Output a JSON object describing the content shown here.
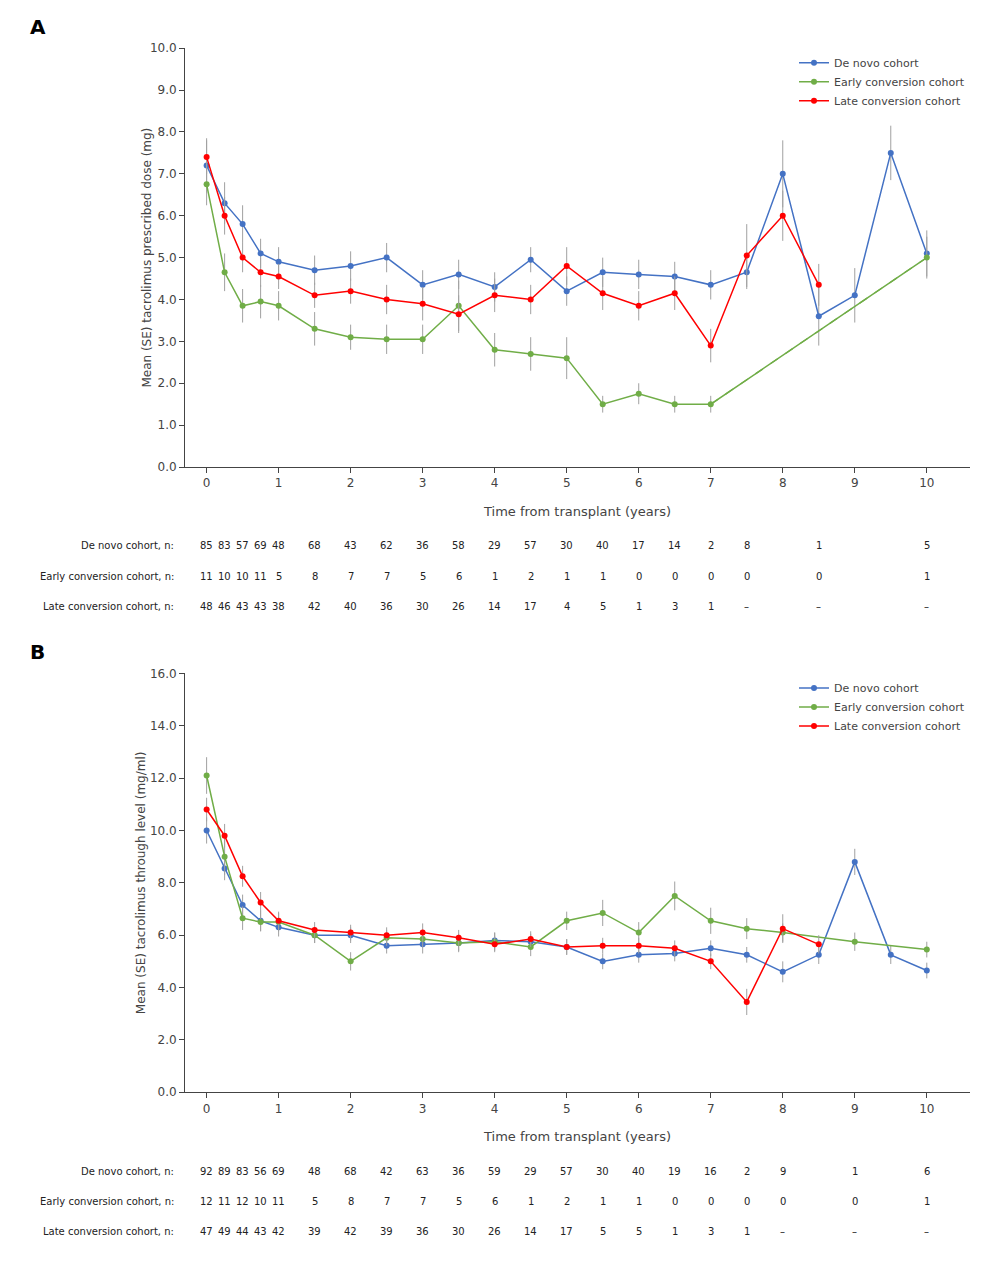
{
  "chart_data": [
    {
      "type": "line",
      "title": "A",
      "xlabel": "Time from transplant (years)",
      "ylabel": "Mean (SE) tacrolimus prescribed dose (mg)",
      "xlim": [
        -0.3,
        10.6
      ],
      "xticks": [
        0,
        1,
        2,
        3,
        4,
        5,
        6,
        7,
        8,
        9,
        10
      ],
      "ylim": [
        0.0,
        10.0
      ],
      "yticks": [
        {
          "value": 0.0,
          "label": "0.0"
        },
        {
          "value": 1.0,
          "label": "1.0"
        },
        {
          "value": 2.0,
          "label": "2.0"
        },
        {
          "value": 3.0,
          "label": "3.0"
        },
        {
          "value": 4.0,
          "label": "4.0"
        },
        {
          "value": 5.0,
          "label": "5.0"
        },
        {
          "value": 6.0,
          "label": "6.0"
        },
        {
          "value": 7.0,
          "label": "7.0"
        },
        {
          "value": 8.0,
          "label": "8.0"
        },
        {
          "value": 9.0,
          "label": "9.0"
        },
        {
          "value": 10.0,
          "label": "10.0"
        }
      ],
      "grid": false,
      "legend": "upper right",
      "series": [
        {
          "name": "De novo cohort",
          "color": "#4472C4",
          "marker": "circle",
          "x": [
            0,
            0.25,
            0.5,
            0.75,
            1.0,
            1.5,
            2.0,
            2.5,
            3.0,
            3.5,
            4.0,
            4.5,
            5.0,
            5.5,
            6.0,
            6.5,
            7.0,
            7.5,
            8.0,
            8.5,
            9.0,
            9.5,
            10.0
          ],
          "values": [
            7.2,
            6.3,
            5.8,
            5.1,
            4.9,
            4.7,
            4.8,
            5.0,
            4.35,
            4.6,
            4.3,
            4.95,
            4.2,
            4.65,
            4.6,
            4.55,
            4.35,
            4.65,
            7.0,
            3.6,
            4.1,
            7.5,
            5.1
          ],
          "errors": [
            0.65,
            0.5,
            0.45,
            0.35,
            0.35,
            0.35,
            0.35,
            0.35,
            0.35,
            0.35,
            0.35,
            0.3,
            0.35,
            0.35,
            0.35,
            0.35,
            0.35,
            0.4,
            0.8,
            0.7,
            0.65,
            0.65,
            0.55
          ]
        },
        {
          "name": "Early conversion cohort",
          "color": "#70AD47",
          "marker": "circle",
          "x": [
            0,
            0.25,
            0.5,
            0.75,
            1.0,
            1.5,
            2.0,
            2.5,
            3.0,
            3.5,
            4.0,
            4.5,
            5.0,
            5.5,
            6.0,
            6.5,
            7.0,
            10.0
          ],
          "values": [
            6.75,
            4.65,
            3.85,
            3.95,
            3.85,
            3.3,
            3.1,
            3.05,
            3.05,
            3.85,
            2.8,
            2.7,
            2.6,
            1.5,
            1.75,
            1.5,
            1.5,
            5.0
          ],
          "errors": [
            0.5,
            0.45,
            0.4,
            0.4,
            0.35,
            0.4,
            0.3,
            0.35,
            0.35,
            0.6,
            0.4,
            0.4,
            0.5,
            0.2,
            0.25,
            0.2,
            0.2,
            0.5
          ],
          "dashed_segment": {
            "x": [
              7.0,
              10.0
            ],
            "values": [
              1.5,
              5.0
            ],
            "line_style": "dashed"
          }
        },
        {
          "name": "Late conversion cohort",
          "color": "#FF0000",
          "marker": "circle",
          "x": [
            0,
            0.25,
            0.5,
            0.75,
            1.0,
            1.5,
            2.0,
            2.5,
            3.0,
            3.5,
            4.0,
            4.5,
            5.0,
            5.5,
            6.0,
            6.5,
            7.0,
            7.5,
            8.0,
            8.5
          ],
          "values": [
            7.4,
            6.0,
            5.0,
            4.65,
            4.55,
            4.1,
            4.2,
            4.0,
            3.9,
            3.65,
            4.1,
            4.0,
            4.8,
            4.15,
            3.85,
            4.15,
            2.9,
            5.05,
            6.0,
            4.35
          ],
          "errors": [
            0.4,
            0.45,
            0.35,
            0.35,
            0.3,
            0.3,
            0.3,
            0.35,
            0.4,
            0.45,
            0.4,
            0.35,
            0.45,
            0.4,
            0.35,
            0.4,
            0.4,
            0.75,
            0.6,
            0.5
          ]
        }
      ],
      "table": {
        "x": [
          0,
          0.25,
          0.5,
          0.75,
          1.0,
          1.5,
          2.0,
          2.5,
          3.0,
          3.5,
          4.0,
          4.5,
          5.0,
          5.5,
          6.0,
          6.5,
          7.0,
          7.5,
          8.5,
          10.0
        ],
        "rows": [
          {
            "label": "De novo cohort, n:",
            "values": [
              "85",
              "83",
              "57",
              "69",
              "48",
              "68",
              "43",
              "62",
              "36",
              "58",
              "29",
              "57",
              "30",
              "40",
              "17",
              "14",
              "2",
              "8",
              "1",
              "5"
            ]
          },
          {
            "label": "Early conversion cohort, n:",
            "values": [
              "11",
              "10",
              "10",
              "11",
              "5",
              "8",
              "7",
              "7",
              "5",
              "6",
              "1",
              "2",
              "1",
              "1",
              "0",
              "0",
              "0",
              "0",
              "0",
              "1"
            ]
          },
          {
            "label": "Late conversion cohort, n:",
            "values": [
              "48",
              "46",
              "43",
              "43",
              "38",
              "42",
              "40",
              "36",
              "30",
              "26",
              "14",
              "17",
              "4",
              "5",
              "1",
              "3",
              "1",
              "–",
              "–",
              "–"
            ]
          }
        ]
      }
    },
    {
      "type": "line",
      "title": "B",
      "xlabel": "Time from transplant (years)",
      "ylabel": "Mean (SE) tacrolimus through level (mg/ml)",
      "xlim": [
        -0.3,
        10.6
      ],
      "xticks": [
        0,
        1,
        2,
        3,
        4,
        5,
        6,
        7,
        8,
        9,
        10
      ],
      "ylim": [
        0.0,
        16.0
      ],
      "yticks": [
        {
          "value": 0.0,
          "label": "0.0"
        },
        {
          "value": 2.0,
          "label": "2.0"
        },
        {
          "value": 4.0,
          "label": "4.0"
        },
        {
          "value": 6.0,
          "label": "6.0"
        },
        {
          "value": 8.0,
          "label": "8.0"
        },
        {
          "value": 10.0,
          "label": "10.0"
        },
        {
          "value": 12.0,
          "label": "12.0"
        },
        {
          "value": 14.0,
          "label": "14.0"
        },
        {
          "value": 16.0,
          "label": "16.0"
        }
      ],
      "grid": false,
      "legend": "upper right",
      "series": [
        {
          "name": "De novo cohort",
          "color": "#4472C4",
          "marker": "circle",
          "x": [
            0,
            0.25,
            0.5,
            0.75,
            1.0,
            1.5,
            2.0,
            2.5,
            3.0,
            3.5,
            4.0,
            4.5,
            5.0,
            5.5,
            6.0,
            6.5,
            7.0,
            7.5,
            8.0,
            8.5,
            9.0,
            9.5,
            10.0
          ],
          "values": [
            10.0,
            8.55,
            7.15,
            6.55,
            6.3,
            6.0,
            6.0,
            5.6,
            5.65,
            5.7,
            5.8,
            5.75,
            5.55,
            5.0,
            5.25,
            5.3,
            5.5,
            5.25,
            4.6,
            5.25,
            8.8,
            5.25,
            4.65
          ],
          "errors": [
            0.5,
            0.45,
            0.4,
            0.4,
            0.35,
            0.3,
            0.3,
            0.3,
            0.35,
            0.35,
            0.3,
            0.3,
            0.3,
            0.3,
            0.3,
            0.3,
            0.3,
            0.3,
            0.4,
            0.35,
            0.5,
            0.35,
            0.3
          ]
        },
        {
          "name": "Early conversion cohort",
          "color": "#70AD47",
          "marker": "circle",
          "x": [
            0,
            0.25,
            0.5,
            0.75,
            1.0,
            1.5,
            2.0,
            2.5,
            3.0,
            3.5,
            4.0,
            4.5,
            5.0,
            5.5,
            6.0,
            6.5,
            7.0,
            7.5,
            8.0,
            9.0,
            10.0
          ],
          "values": [
            12.1,
            9.0,
            6.65,
            6.5,
            6.5,
            6.0,
            5.0,
            5.9,
            5.85,
            5.7,
            5.75,
            5.55,
            6.55,
            6.85,
            6.1,
            7.5,
            6.55,
            6.25,
            6.1,
            5.75,
            5.45
          ],
          "errors": [
            0.7,
            0.7,
            0.45,
            0.35,
            0.35,
            0.3,
            0.35,
            0.3,
            0.3,
            0.3,
            0.35,
            0.35,
            0.35,
            0.5,
            0.4,
            0.55,
            0.5,
            0.4,
            0.35,
            0.35,
            0.3
          ]
        },
        {
          "name": "Late conversion cohort",
          "color": "#FF0000",
          "marker": "circle",
          "x": [
            0,
            0.25,
            0.5,
            0.75,
            1.0,
            1.5,
            2.0,
            2.5,
            3.0,
            3.5,
            4.0,
            4.5,
            5.0,
            5.5,
            6.0,
            6.5,
            7.0,
            7.5,
            8.0,
            8.5
          ],
          "values": [
            10.8,
            9.8,
            8.25,
            7.25,
            6.55,
            6.2,
            6.1,
            6.0,
            6.1,
            5.9,
            5.65,
            5.85,
            5.55,
            5.6,
            5.6,
            5.5,
            5.0,
            3.45,
            6.25,
            5.65
          ],
          "errors": [
            0.45,
            0.45,
            0.4,
            0.4,
            0.35,
            0.3,
            0.3,
            0.3,
            0.35,
            0.3,
            0.3,
            0.3,
            0.3,
            0.3,
            0.3,
            0.3,
            0.3,
            0.5,
            0.55,
            0.35
          ]
        }
      ],
      "table": {
        "x": [
          0,
          0.25,
          0.5,
          0.75,
          1.0,
          1.5,
          2.0,
          2.5,
          3.0,
          3.5,
          4.0,
          4.5,
          5.0,
          5.5,
          6.0,
          6.5,
          7.0,
          7.5,
          8.0,
          9.0,
          10.0
        ],
        "rows": [
          {
            "label": "De novo cohort, n:",
            "values": [
              "92",
              "89",
              "83",
              "56",
              "69",
              "48",
              "68",
              "42",
              "63",
              "36",
              "59",
              "29",
              "57",
              "30",
              "40",
              "19",
              "16",
              "2",
              "9",
              "1",
              "6"
            ]
          },
          {
            "label": "Early conversion cohort, n:",
            "values": [
              "12",
              "11",
              "12",
              "10",
              "11",
              "5",
              "8",
              "7",
              "7",
              "5",
              "6",
              "1",
              "2",
              "1",
              "1",
              "0",
              "0",
              "0",
              "0",
              "0",
              "1"
            ]
          },
          {
            "label": "Late conversion cohort, n:",
            "values": [
              "47",
              "49",
              "44",
              "43",
              "42",
              "39",
              "42",
              "39",
              "36",
              "30",
              "26",
              "14",
              "17",
              "5",
              "5",
              "1",
              "3",
              "1",
              "–",
              "–",
              "–"
            ]
          }
        ]
      }
    }
  ]
}
